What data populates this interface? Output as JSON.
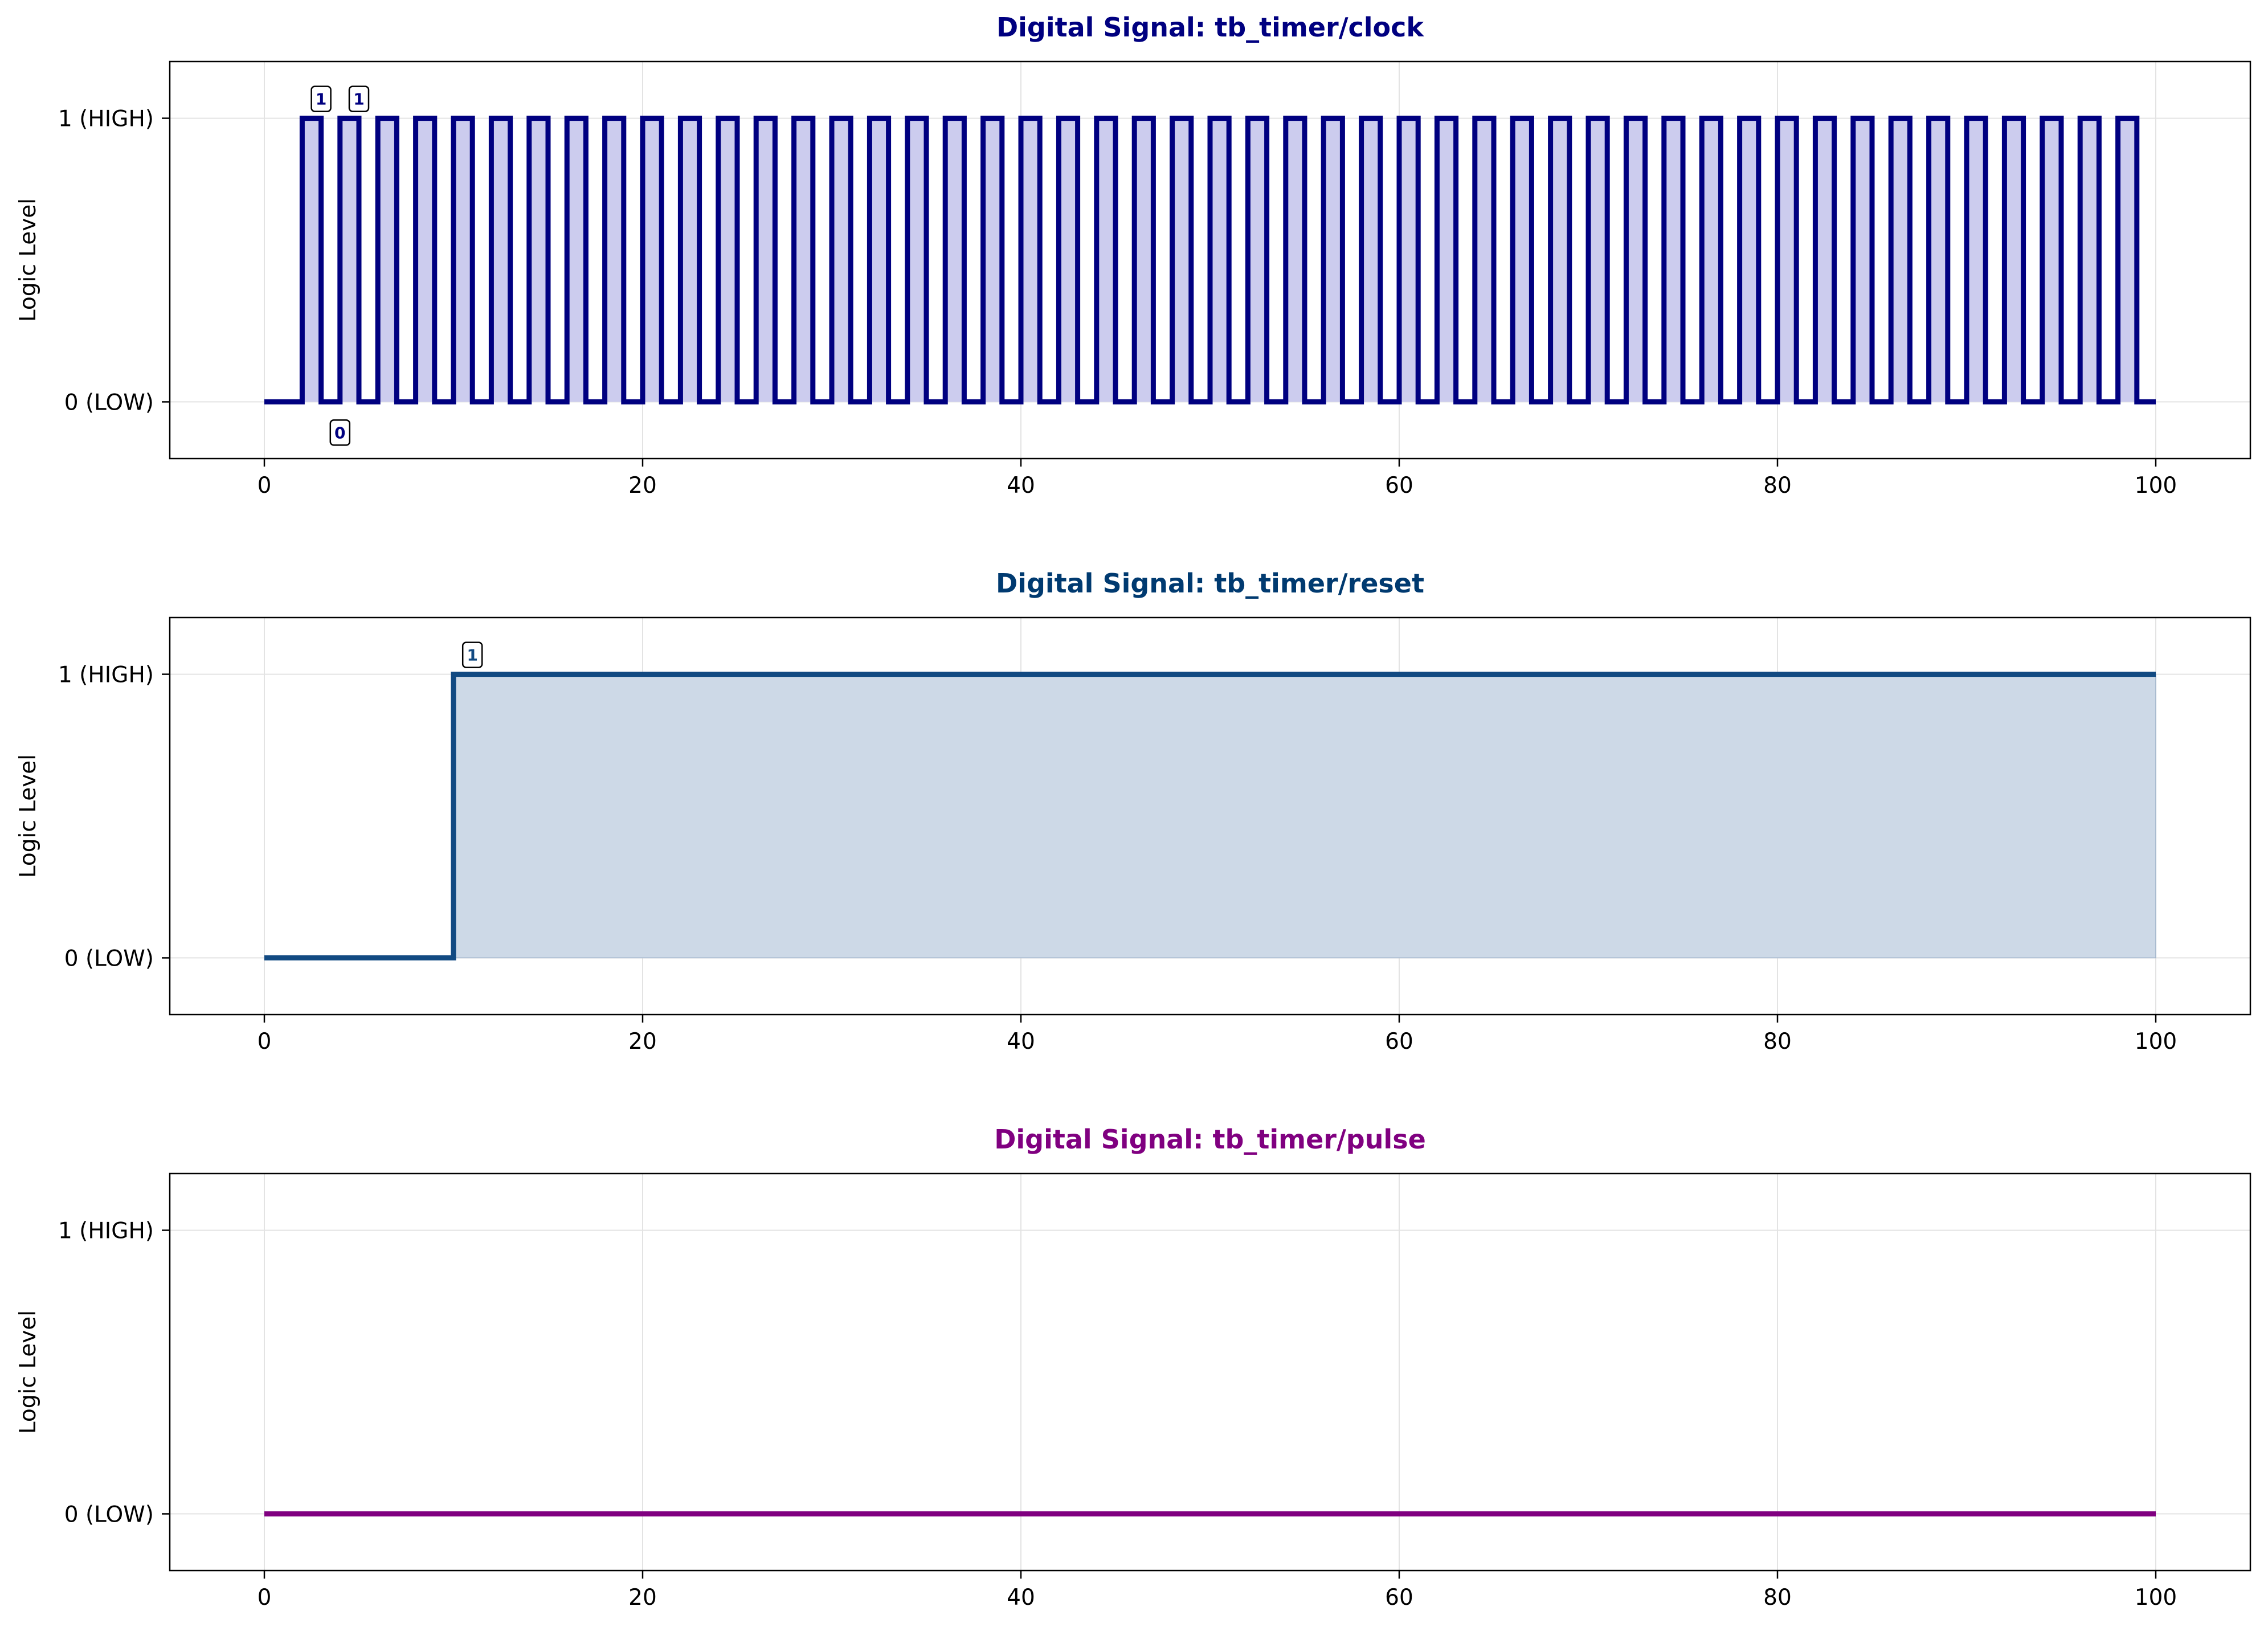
{
  "chart_data": [
    {
      "type": "line",
      "step": true,
      "title": "Digital Signal: tb_timer/clock",
      "title_color": "#000080",
      "line_color": "#000080",
      "fill_color": "#ccccee",
      "ylabel": "Logic Level",
      "xlim": [
        -5,
        105
      ],
      "ylim": [
        -0.2,
        1.2
      ],
      "grid": true,
      "x_ticks": [
        {
          "value": 0,
          "label": "0"
        },
        {
          "value": 20,
          "label": "20"
        },
        {
          "value": 40,
          "label": "40"
        },
        {
          "value": 60,
          "label": "60"
        },
        {
          "value": 80,
          "label": "80"
        },
        {
          "value": 100,
          "label": "100"
        }
      ],
      "y_ticks": [
        {
          "value": 0,
          "label": "0 (LOW)"
        },
        {
          "value": 1,
          "label": "1 (HIGH)"
        }
      ],
      "clock": {
        "first_rise": 2,
        "period": 2,
        "high_duration": 1,
        "end": 100
      },
      "annotations": [
        {
          "x": 3,
          "y": 1,
          "text": "1",
          "placement": "above"
        },
        {
          "x": 5,
          "y": 1,
          "text": "1",
          "placement": "above"
        },
        {
          "x": 4,
          "y": 0,
          "text": "0",
          "placement": "below"
        }
      ]
    },
    {
      "type": "line",
      "step": true,
      "title": "Digital Signal: tb_timer/reset",
      "title_color": "#003a70",
      "line_color": "#124a82",
      "fill_color": "#cdd9e7",
      "ylabel": "Logic Level",
      "xlim": [
        -5,
        105
      ],
      "ylim": [
        -0.2,
        1.2
      ],
      "grid": true,
      "x_ticks": [
        {
          "value": 0,
          "label": "0"
        },
        {
          "value": 20,
          "label": "20"
        },
        {
          "value": 40,
          "label": "40"
        },
        {
          "value": 60,
          "label": "60"
        },
        {
          "value": 80,
          "label": "80"
        },
        {
          "value": 100,
          "label": "100"
        }
      ],
      "y_ticks": [
        {
          "value": 0,
          "label": "0 (LOW)"
        },
        {
          "value": 1,
          "label": "1 (HIGH)"
        }
      ],
      "transitions": [
        {
          "t": 0,
          "v": 0
        },
        {
          "t": 10,
          "v": 1
        },
        {
          "t": 100,
          "v": 1
        }
      ],
      "annotations": [
        {
          "x": 11,
          "y": 1,
          "text": "1",
          "placement": "above"
        }
      ]
    },
    {
      "type": "line",
      "step": true,
      "title": "Digital Signal: tb_timer/pulse",
      "title_color": "#800080",
      "line_color": "#800080",
      "fill_color": "#eecfee",
      "ylabel": "Logic Level",
      "xlim": [
        -5,
        105
      ],
      "ylim": [
        -0.2,
        1.2
      ],
      "grid": true,
      "x_ticks": [
        {
          "value": 0,
          "label": "0"
        },
        {
          "value": 20,
          "label": "20"
        },
        {
          "value": 40,
          "label": "40"
        },
        {
          "value": 60,
          "label": "60"
        },
        {
          "value": 80,
          "label": "80"
        },
        {
          "value": 100,
          "label": "100"
        }
      ],
      "y_ticks": [
        {
          "value": 0,
          "label": "0 (LOW)"
        },
        {
          "value": 1,
          "label": "1 (HIGH)"
        }
      ],
      "transitions": [
        {
          "t": 0,
          "v": 0
        },
        {
          "t": 100,
          "v": 0
        }
      ],
      "annotations": []
    }
  ]
}
